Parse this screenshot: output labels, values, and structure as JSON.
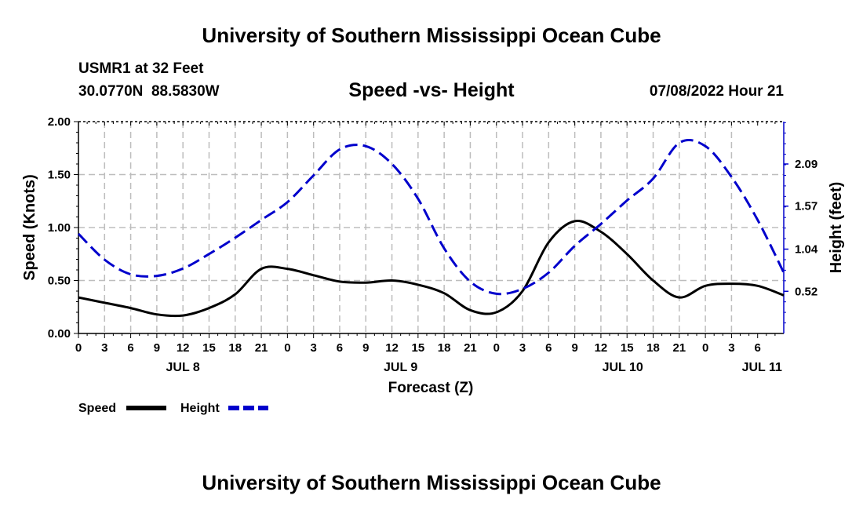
{
  "header": {
    "title": "University of Southern Mississippi Ocean Cube",
    "station": "USMR1 at 32 Feet",
    "coords": "30.0770N  88.5830W",
    "subtitle": "Speed -vs- Height",
    "datetime": "07/08/2022 Hour 21"
  },
  "footer": {
    "title": "University of Southern Mississippi Ocean Cube"
  },
  "chart_data": {
    "type": "line",
    "title": "Speed -vs- Height",
    "xlabel": "Forecast (Z)",
    "ylabel": "Speed (Knots)",
    "y2label": "Height (feet)",
    "x_hours_range": [
      0,
      81
    ],
    "ylim": [
      0,
      2.0
    ],
    "y2lim": [
      0,
      2.6125
    ],
    "y_ticks": [
      "0.00",
      "0.50",
      "1.00",
      "1.50",
      "2.00"
    ],
    "y_tick_values": [
      0,
      0.5,
      1.0,
      1.5,
      2.0
    ],
    "y2_ticks": [
      "0.52",
      "1.04",
      "1.57",
      "2.09"
    ],
    "y2_tick_values": [
      0.52,
      1.04,
      1.57,
      2.09
    ],
    "x_ticks": [
      "0",
      "3",
      "6",
      "9",
      "12",
      "15",
      "18",
      "21",
      "0",
      "3",
      "6",
      "9",
      "12",
      "15",
      "18",
      "21",
      "0",
      "3",
      "6",
      "9",
      "12",
      "15",
      "18",
      "21",
      "0",
      "3",
      "6"
    ],
    "date_labels": [
      {
        "label": "JUL 8",
        "hour": 12
      },
      {
        "label": "JUL 9",
        "hour": 37
      },
      {
        "label": "JUL 10",
        "hour": 62.5
      },
      {
        "label": "JUL 11",
        "hour": 78.5
      }
    ],
    "grid": true,
    "legend": [
      {
        "name": "Speed",
        "color": "#000000",
        "dash": "solid"
      },
      {
        "name": "Height",
        "color": "#0000cc",
        "dash": "dashed"
      }
    ],
    "series": [
      {
        "name": "Speed",
        "axis": "left",
        "color": "#000000",
        "x": [
          0,
          3,
          6,
          9,
          12,
          15,
          18,
          21,
          24,
          27,
          30,
          33,
          36,
          39,
          42,
          45,
          48,
          51,
          54,
          57,
          60,
          63,
          66,
          69,
          72,
          75,
          78,
          81
        ],
        "values": [
          0.34,
          0.29,
          0.24,
          0.18,
          0.17,
          0.24,
          0.37,
          0.61,
          0.61,
          0.55,
          0.49,
          0.48,
          0.5,
          0.46,
          0.38,
          0.22,
          0.2,
          0.4,
          0.86,
          1.06,
          0.96,
          0.75,
          0.5,
          0.34,
          0.45,
          0.47,
          0.45,
          0.36
        ]
      },
      {
        "name": "Height",
        "axis": "right",
        "color": "#0000cc",
        "x": [
          0,
          3,
          6,
          9,
          12,
          15,
          18,
          21,
          24,
          27,
          30,
          33,
          36,
          39,
          42,
          45,
          48,
          51,
          54,
          57,
          60,
          63,
          66,
          69,
          72,
          75,
          78,
          81
        ],
        "values": [
          1.23,
          0.91,
          0.73,
          0.71,
          0.8,
          0.98,
          1.18,
          1.4,
          1.62,
          1.95,
          2.27,
          2.31,
          2.09,
          1.66,
          1.05,
          0.64,
          0.49,
          0.55,
          0.75,
          1.08,
          1.35,
          1.64,
          1.91,
          2.35,
          2.31,
          1.93,
          1.4,
          0.75
        ]
      }
    ]
  }
}
